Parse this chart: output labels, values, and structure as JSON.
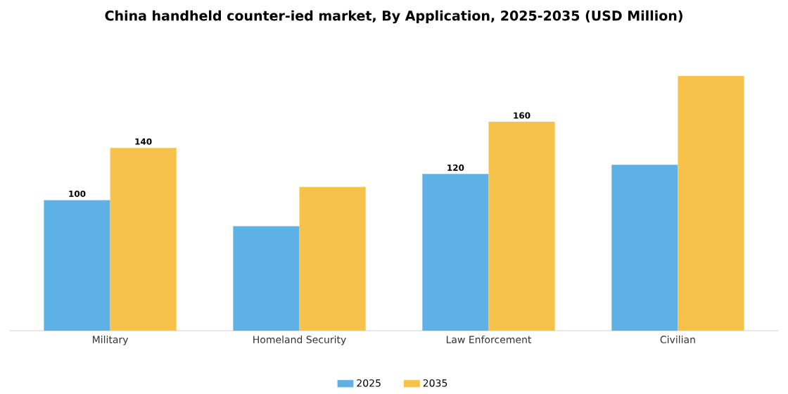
{
  "chart_data": {
    "type": "bar",
    "title": "China handheld counter-ied market, By Application, 2025-2035 (USD Million)",
    "categories": [
      "Military",
      "Homeland Security",
      "Law Enforcement",
      "Civilian"
    ],
    "series": [
      {
        "name": "2025",
        "color": "#5db1e4",
        "values": [
          100,
          80,
          120,
          127
        ],
        "value_labels": [
          "100",
          null,
          "120",
          null
        ]
      },
      {
        "name": "2035",
        "color": "#f7c24a",
        "values": [
          140,
          110,
          160,
          195
        ],
        "value_labels": [
          "140",
          null,
          "160",
          null
        ]
      }
    ],
    "legend": "bottom"
  }
}
